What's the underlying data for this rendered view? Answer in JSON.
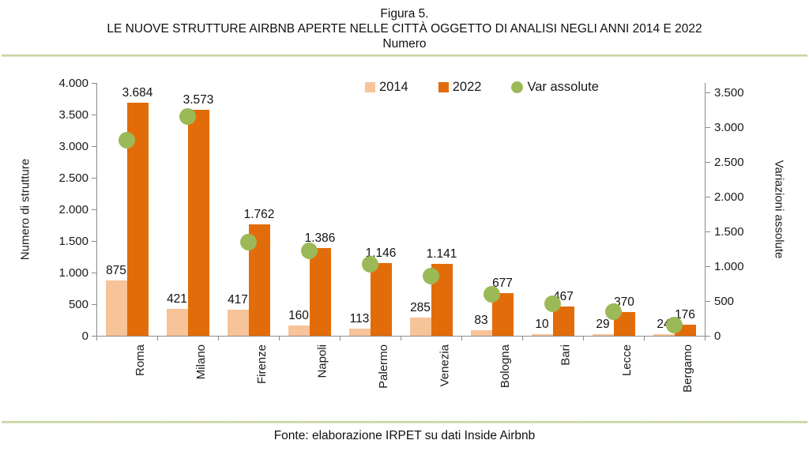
{
  "title": {
    "line1": "Figura 5.",
    "line2": "LE NUOVE STRUTTURE AIRBNB APERTE NELLE CITTÀ OGGETTO DI ANALISI NEGLI ANNI 2014 E 2022",
    "line3": "Numero"
  },
  "footer": {
    "source": "Fonte: elaborazione IRPET su dati Inside Airbnb"
  },
  "colors": {
    "bar2014": "#f7c398",
    "bar2022": "#e36c0a",
    "dot": "#9bb957",
    "rule_green": "#c5d79e",
    "axis_gray": "#8c8c8c",
    "text": "#1a1a1a"
  },
  "chart_data": {
    "type": "bar",
    "subtype": "grouped bars with scatter overlay on secondary axis",
    "categories": [
      "Roma",
      "Milano",
      "Firenze",
      "Napoli",
      "Palermo",
      "Venezia",
      "Bologna",
      "Bari",
      "Lecce",
      "Bergamo"
    ],
    "series": [
      {
        "name": "2014",
        "type": "bar",
        "axis": "left",
        "color_key": "bar2014",
        "values": [
          875,
          421,
          417,
          160,
          113,
          285,
          83,
          10,
          29,
          24
        ],
        "labels": [
          "875",
          "421",
          "417",
          "160",
          "113",
          "285",
          "83",
          "10",
          "29",
          "24"
        ]
      },
      {
        "name": "2022",
        "type": "bar",
        "axis": "left",
        "color_key": "bar2022",
        "values": [
          3684,
          3573,
          1762,
          1386,
          1146,
          1141,
          677,
          467,
          370,
          176
        ],
        "labels": [
          "3.684",
          "3.573",
          "1.762",
          "1.386",
          "1.146",
          "1.141",
          "677",
          "467",
          "370",
          "176"
        ]
      },
      {
        "name": "Var assolute",
        "type": "scatter",
        "axis": "right",
        "color_key": "dot",
        "values": [
          2809,
          3152,
          1345,
          1226,
          1033,
          856,
          594,
          457,
          341,
          152
        ]
      }
    ],
    "left_axis": {
      "label": "Numero di strutture",
      "min": 0,
      "max": 4000,
      "tick_step": 500,
      "ticks": [
        "4.000",
        "3.500",
        "3.000",
        "2.500",
        "2.000",
        "1.500",
        "1.000",
        "500",
        "0"
      ]
    },
    "right_axis": {
      "label": "Variazioni assolute",
      "min": 0,
      "max": 3500,
      "tick_step": 500,
      "ticks": [
        "3.500",
        "3.000",
        "2.500",
        "2.000",
        "1.500",
        "1.000",
        "500",
        "0"
      ]
    },
    "legend": [
      {
        "name": "2014",
        "shape": "square",
        "color_key": "bar2014"
      },
      {
        "name": "2022",
        "shape": "square",
        "color_key": "bar2022"
      },
      {
        "name": "Var assolute",
        "shape": "circle",
        "color_key": "dot"
      }
    ],
    "grid": false,
    "legend_position": "top-center"
  }
}
